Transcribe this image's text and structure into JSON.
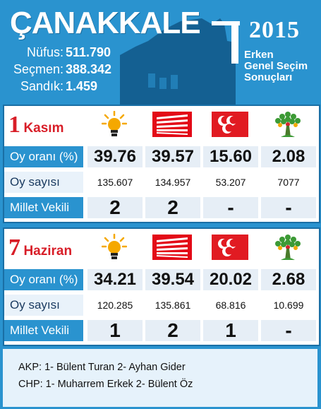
{
  "header": {
    "city": "ÇANAKKALE",
    "year": "2015",
    "subtitle": [
      "Erken",
      "Genel Seçim",
      "Sonuçları"
    ],
    "stats": [
      {
        "label": "Nüfus:",
        "value": "511.790"
      },
      {
        "label": "Seçmen:",
        "value": "388.342"
      },
      {
        "label": "Sandık:",
        "value": "1.459"
      }
    ]
  },
  "parties": [
    "akp-bulb-logo",
    "chp-six-arrows-logo",
    "mhp-crescents-logo",
    "hdp-tree-logo"
  ],
  "colors": {
    "background": "#2a93cf",
    "accent_red": "#d81e28",
    "chp_red": "#e30a17",
    "mhp_red": "#e11b22",
    "akp_yellow": "#f5a800",
    "hdp_green": "#3c9a35"
  },
  "elections": [
    {
      "date_num": "1",
      "date_word": "Kasım",
      "row_labels": {
        "pct": "Oy oranı (%)",
        "cnt": "Oy sayısı",
        "mv": "Millet Vekili"
      },
      "pct": [
        "39.76",
        "39.57",
        "15.60",
        "2.08"
      ],
      "cnt": [
        "135.607",
        "134.957",
        "53.207",
        "7077"
      ],
      "mv": [
        "2",
        "2",
        "-",
        "-"
      ]
    },
    {
      "date_num": "7",
      "date_word": "Haziran",
      "row_labels": {
        "pct": "Oy oranı (%)",
        "cnt": "Oy sayısı",
        "mv": "Millet Vekili"
      },
      "pct": [
        "34.21",
        "39.54",
        "20.02",
        "2.68"
      ],
      "cnt": [
        "120.285",
        "135.861",
        "68.816",
        "10.699"
      ],
      "mv": [
        "1",
        "2",
        "1",
        "-"
      ]
    }
  ],
  "footer": [
    "AKP: 1- Bülent Turan 2- Ayhan Gider",
    "CHP: 1- Muharrem Erkek 2- Bülent Öz"
  ]
}
